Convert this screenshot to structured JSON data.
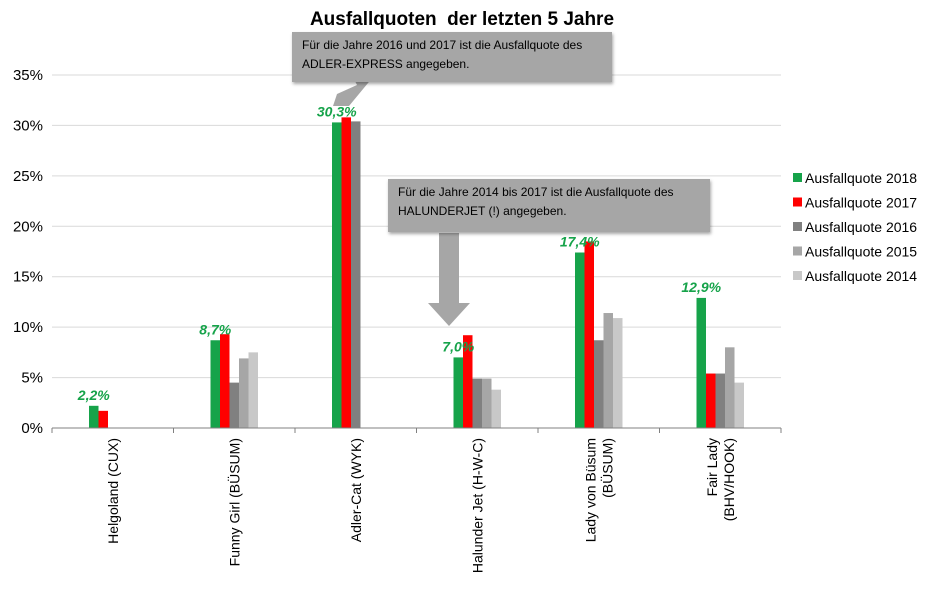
{
  "colors": {
    "2018": "#16a34a",
    "2017": "#ff0000",
    "2016": "#808080",
    "2015": "#a6a6a6",
    "2014": "#c8c8c8",
    "note_bg": "#a6a6a6",
    "label": "#16a34a"
  },
  "chart_data": {
    "type": "bar",
    "title": "Ausfallquoten  der letzten 5 Jahre",
    "categories": [
      "Helgoland (CUX)",
      "Funny Girl (BÜSUM)",
      "Adler-Cat (WYK)",
      "Halunder Jet (H-W-C)",
      "Lady von Büsum (BÜSUM)",
      "Fair Lady (BHV/HOOK)"
    ],
    "category_lines": [
      [
        "Helgoland (CUX)"
      ],
      [
        "Funny Girl (BÜSUM)"
      ],
      [
        "Adler-Cat (WYK)"
      ],
      [
        "Halunder Jet (H-W-C)"
      ],
      [
        "Lady von Büsum",
        "(BÜSUM)"
      ],
      [
        "Fair Lady",
        "(BHV/HOOK)"
      ]
    ],
    "series": [
      {
        "name": "Ausfallquote 2018",
        "values": [
          2.2,
          8.7,
          30.3,
          7.0,
          17.4,
          12.9
        ]
      },
      {
        "name": "Ausfallquote 2017",
        "values": [
          1.7,
          9.3,
          30.8,
          9.2,
          18.5,
          5.4
        ]
      },
      {
        "name": "Ausfallquote 2016",
        "values": [
          null,
          4.5,
          30.4,
          4.9,
          8.7,
          5.4
        ]
      },
      {
        "name": "Ausfallquote 2015",
        "values": [
          null,
          6.9,
          null,
          4.9,
          11.4,
          8.0
        ]
      },
      {
        "name": "Ausfallquote 2014",
        "values": [
          null,
          7.5,
          null,
          3.8,
          10.9,
          4.5
        ]
      }
    ],
    "data_labels_2018": [
      "2,2%",
      "8,7%",
      "30,3%",
      "7,0%",
      "17,4%",
      "12,9%"
    ],
    "yticks": [
      "0%",
      "5%",
      "10%",
      "15%",
      "20%",
      "25%",
      "30%",
      "35%"
    ],
    "ylim": [
      0,
      35
    ],
    "grid": true,
    "legend_position": "right"
  },
  "annotations": [
    {
      "lines": [
        "Für die Jahre 2016 und 2017 ist die Ausfallquote  des",
        "ADLER-EXPRESS angegeben."
      ]
    },
    {
      "lines": [
        "Für die Jahre 2014 bis 2017 ist die Ausfallquote  des",
        "HALUNDERJET (!) angegeben."
      ]
    }
  ]
}
